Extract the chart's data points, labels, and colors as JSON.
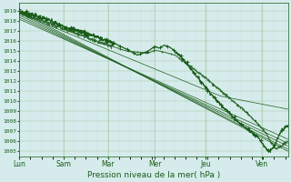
{
  "xlabel": "Pression niveau de la mer( hPa )",
  "ylim": [
    1004.5,
    1019.8
  ],
  "yticks": [
    1005,
    1006,
    1007,
    1008,
    1009,
    1010,
    1011,
    1012,
    1013,
    1014,
    1015,
    1016,
    1017,
    1018,
    1019
  ],
  "xtick_labels": [
    "Lun",
    "Sam",
    "Mar",
    "Mer",
    "Jeu",
    "Ven"
  ],
  "xtick_positions": [
    0.0,
    0.165,
    0.33,
    0.505,
    0.695,
    0.905
  ],
  "bg_color": "#d6ecec",
  "grid_color_major": "#aacaaa",
  "grid_color_minor": "#c2dcc2",
  "line_color": "#1a5c1a",
  "xlim": [
    0,
    1
  ]
}
